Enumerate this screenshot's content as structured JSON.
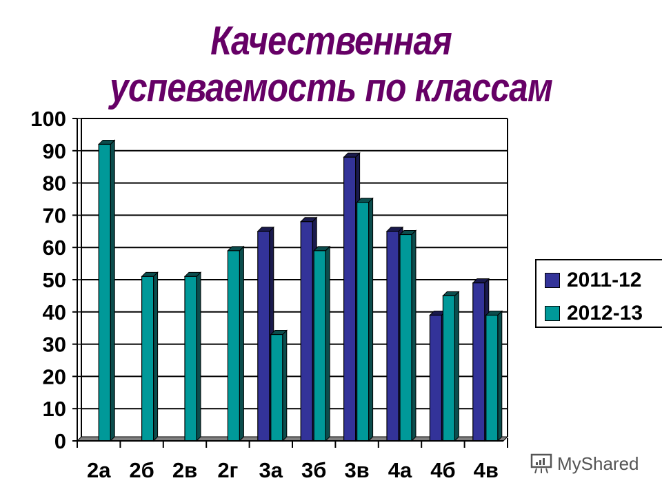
{
  "title": {
    "line1": "Качественная",
    "line2": "успеваемость по классам",
    "color": "#660066"
  },
  "legend": {
    "items": [
      {
        "label": "2011-12",
        "color": "#333399"
      },
      {
        "label": "2012-13",
        "color": "#009999"
      }
    ]
  },
  "watermark": {
    "icon": "presentation-chart-icon",
    "text": "MyShared"
  },
  "chart_data": {
    "type": "bar",
    "title": "Качественная успеваемость по классам",
    "xlabel": "",
    "ylabel": "",
    "categories": [
      "2а",
      "2б",
      "2в",
      "2г",
      "3а",
      "3б",
      "3в",
      "4а",
      "4б",
      "4в"
    ],
    "series": [
      {
        "name": "2011-12",
        "color": "#333399",
        "values": [
          0,
          0,
          0,
          0,
          65,
          68,
          88,
          65,
          39,
          49
        ]
      },
      {
        "name": "2012-13",
        "color": "#009999",
        "values": [
          92,
          51,
          51,
          59,
          33,
          59,
          74,
          64,
          45,
          39
        ]
      }
    ],
    "yticks": [
      "0",
      "10",
      "20",
      "30",
      "40",
      "50",
      "60",
      "70",
      "80",
      "90",
      "100"
    ],
    "ylim": [
      0,
      100
    ],
    "grid": true,
    "legend_position": "right",
    "style": "3d-clustered-column"
  }
}
